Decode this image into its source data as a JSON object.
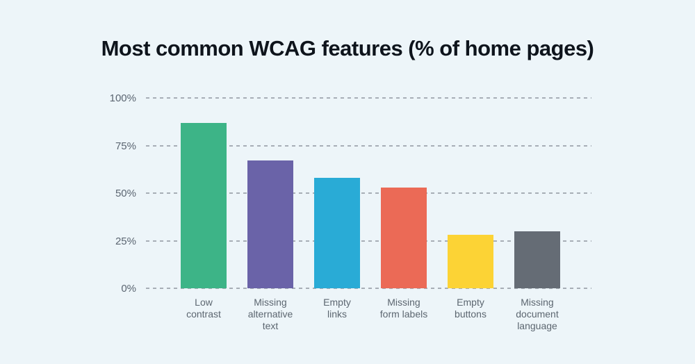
{
  "title": "Most common WCAG features (% of home pages)",
  "page": {
    "background_color": "#edf5f9",
    "title_color": "#0e141c"
  },
  "chart_data": {
    "type": "bar",
    "title": "Most common WCAG features (% of home pages)",
    "categories": [
      "Low contrast",
      "Missing alternative text",
      "Empty links",
      "Missing form labels",
      "Empty buttons",
      "Missing document language"
    ],
    "category_label_lines": [
      "Low\ncontrast",
      "Missing\nalternative\ntext",
      "Empty\nlinks",
      "Missing\nform labels",
      "Empty\nbuttons",
      "Missing\ndocument\nlanguage"
    ],
    "values": [
      87,
      67,
      58,
      53,
      28,
      30
    ],
    "unit": "%",
    "bar_colors": [
      "#3db487",
      "#6a63a8",
      "#29abd6",
      "#eb6a56",
      "#fcd335",
      "#656c75"
    ],
    "xlabel": "",
    "ylabel": "",
    "ylim": [
      0,
      100
    ],
    "ytick_values": [
      100,
      75,
      50,
      25,
      0
    ],
    "ytick_labels": [
      "100%",
      "75%",
      "50%",
      "25%",
      "0%"
    ],
    "grid": "horizontal-dashed",
    "gridline_color": "#a7aeb6",
    "axis_text_color": "#5b6571",
    "legend": "none"
  }
}
